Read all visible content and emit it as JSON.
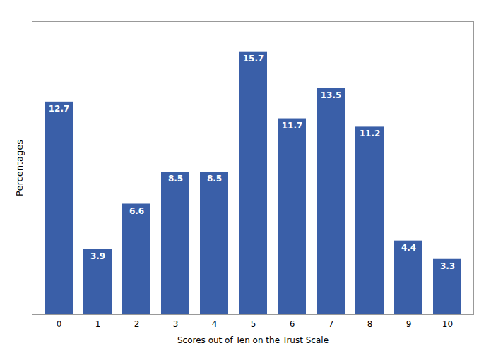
{
  "chart_data": {
    "type": "bar",
    "categories": [
      "0",
      "1",
      "2",
      "3",
      "4",
      "5",
      "6",
      "7",
      "8",
      "9",
      "10"
    ],
    "values": [
      12.7,
      3.9,
      6.6,
      8.5,
      8.5,
      15.7,
      11.7,
      13.5,
      11.2,
      4.4,
      3.3
    ],
    "color": "#3A5FA8",
    "xlabel": "Scores out of Ten on the Trust Scale",
    "ylabel": "Percentages",
    "ylim": [
      0,
      17.5
    ],
    "data_labels": true,
    "tick_labels": "x",
    "grid": false
  }
}
